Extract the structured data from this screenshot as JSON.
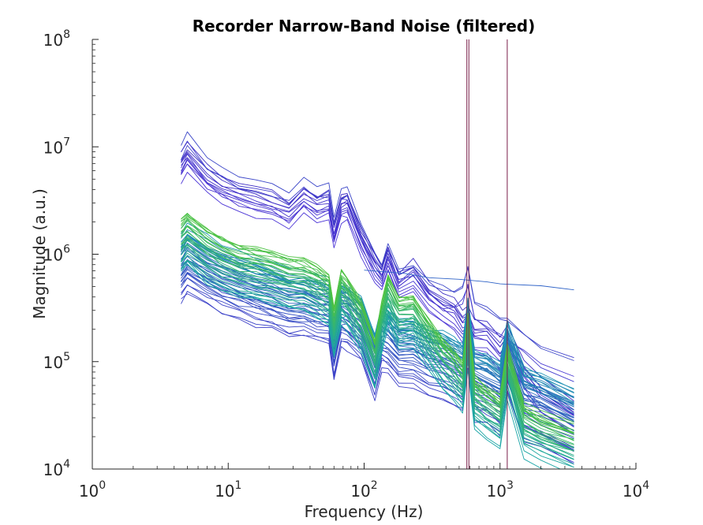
{
  "chart_data": {
    "type": "line",
    "title": "Recorder Narrow-Band Noise (filtered)",
    "xlabel": "Frequency (Hz)",
    "ylabel": "Magnitude (a.u.)",
    "xscale": "log",
    "yscale": "log",
    "xlim": [
      1,
      10000
    ],
    "ylim": [
      10000,
      100000000
    ],
    "grid": false,
    "legend": "none",
    "x_ticks": [
      {
        "value": 1,
        "base": "10",
        "exp": "0"
      },
      {
        "value": 10,
        "base": "10",
        "exp": "1"
      },
      {
        "value": 100,
        "base": "10",
        "exp": "2"
      },
      {
        "value": 1000,
        "base": "10",
        "exp": "3"
      },
      {
        "value": 10000,
        "base": "10",
        "exp": "4"
      }
    ],
    "y_ticks": [
      {
        "value": 10000,
        "base": "10",
        "exp": "4"
      },
      {
        "value": 100000,
        "base": "10",
        "exp": "5"
      },
      {
        "value": 1000000,
        "base": "10",
        "exp": "6"
      },
      {
        "value": 10000000,
        "base": "10",
        "exp": "7"
      },
      {
        "value": 100000000,
        "base": "10",
        "exp": "8"
      }
    ],
    "vertical_lines": {
      "x": [
        570,
        590,
        1130
      ],
      "color": "#7a1f4a"
    },
    "peak_frequencies": [
      60,
      120,
      580,
      1130
    ],
    "series_groups": [
      {
        "count": 10,
        "color_from": "#4b34d6",
        "color_to": "#3c2cc2",
        "x": [
          4.5,
          5,
          7,
          9,
          12,
          16,
          21,
          28,
          36,
          45,
          55,
          60,
          68,
          75,
          95,
          120,
          135,
          150,
          180,
          230,
          300,
          380,
          460,
          530,
          580,
          650,
          800,
          1000,
          1130,
          1500,
          2000,
          3500
        ],
        "y": [
          6500000,
          8000000,
          5000000,
          4000000,
          3400000,
          3100000,
          2800000,
          2300000,
          3200000,
          2600000,
          2900000,
          1500000,
          2700000,
          2800000,
          1300000,
          750000,
          600000,
          900000,
          500000,
          620000,
          380000,
          300000,
          260000,
          200000,
          220000,
          160000,
          150000,
          110000,
          140000,
          70000,
          45000,
          28000
        ],
        "spread": [
          0.75,
          1.35
        ]
      },
      {
        "count": 4,
        "color_from": "#4a3ad2",
        "color_to": "#3b46c8",
        "x": [
          4.5,
          5,
          7,
          9,
          12,
          16,
          21,
          28,
          36,
          45,
          55,
          60,
          68,
          75,
          95,
          120,
          135,
          150,
          180,
          230,
          300,
          380,
          460,
          530,
          580,
          650,
          800,
          1000,
          1130,
          1500,
          2000,
          3500
        ],
        "y": [
          9000000,
          11500000,
          6500000,
          5600000,
          4600000,
          4300000,
          3800000,
          3200000,
          4300000,
          3500000,
          3800000,
          2000000,
          3500000,
          3600000,
          1700000,
          900000,
          720000,
          1050000,
          650000,
          720000,
          520000,
          430000,
          400000,
          450000,
          650000,
          320000,
          270000,
          230000,
          210000,
          160000,
          120000,
          90000
        ],
        "spread": [
          0.75,
          1.15
        ]
      },
      {
        "count": 1,
        "color_from": "#2f63c7",
        "color_to": "#2f63c7",
        "x": [
          100,
          200,
          300,
          500,
          800,
          1000,
          2000,
          3500
        ],
        "y": [
          650000,
          600000,
          580000,
          560000,
          550000,
          540000,
          520000,
          500000
        ],
        "spread": [
          1,
          1
        ]
      },
      {
        "count": 40,
        "color_from": "#3d3fc9",
        "color_to": "#1d93b2",
        "x": [
          4.5,
          5,
          7,
          9,
          12,
          16,
          21,
          28,
          36,
          45,
          55,
          60,
          68,
          75,
          95,
          120,
          135,
          150,
          180,
          230,
          300,
          380,
          460,
          530,
          580,
          650,
          800,
          1000,
          1130,
          1500,
          2000,
          3500
        ],
        "y": [
          700000,
          850000,
          650000,
          550000,
          480000,
          420000,
          380000,
          330000,
          330000,
          300000,
          290000,
          130000,
          270000,
          260000,
          200000,
          90000,
          170000,
          160000,
          120000,
          120000,
          100000,
          90000,
          80000,
          70000,
          180000,
          60000,
          55000,
          45000,
          110000,
          40000,
          35000,
          25000
        ],
        "spread": [
          0.5,
          2.0
        ]
      },
      {
        "count": 30,
        "color_from": "#1aa5a8",
        "color_to": "#4ec33f",
        "x": [
          4.5,
          5,
          7,
          9,
          12,
          16,
          21,
          28,
          36,
          45,
          55,
          60,
          68,
          75,
          95,
          120,
          135,
          150,
          180,
          230,
          300,
          380,
          460,
          530,
          580,
          650,
          800,
          1000,
          1130,
          1500,
          2000,
          3500
        ],
        "y": [
          1100000,
          1300000,
          900000,
          750000,
          650000,
          600000,
          560000,
          500000,
          480000,
          420000,
          350000,
          180000,
          380000,
          330000,
          200000,
          90000,
          200000,
          350000,
          220000,
          230000,
          140000,
          90000,
          70000,
          55000,
          150000,
          40000,
          32000,
          26000,
          80000,
          22000,
          18000,
          14000
        ],
        "spread": [
          0.6,
          1.8
        ]
      }
    ]
  }
}
